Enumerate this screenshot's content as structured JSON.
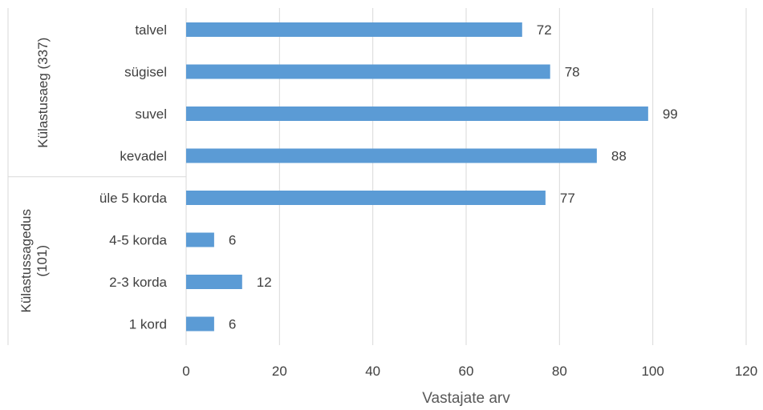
{
  "chart_data": {
    "type": "bar",
    "orientation": "horizontal",
    "xlabel": "Vastajate arv",
    "xlim": [
      0,
      120
    ],
    "xticks": [
      "0",
      "20",
      "40",
      "60",
      "80",
      "100",
      "120"
    ],
    "grid": true,
    "color": "#5B9BD5",
    "groups": [
      {
        "label": "Külastusaeg (337)",
        "categories": [
          "talvel",
          "sügisel",
          "suvel",
          "kevadel"
        ],
        "values": [
          72,
          78,
          99,
          88
        ]
      },
      {
        "label": "Külastussagedus (101)",
        "categories": [
          "üle 5 korda",
          "4-5 korda",
          "2-3 korda",
          "1 kord"
        ],
        "values": [
          77,
          6,
          12,
          6
        ]
      }
    ]
  }
}
